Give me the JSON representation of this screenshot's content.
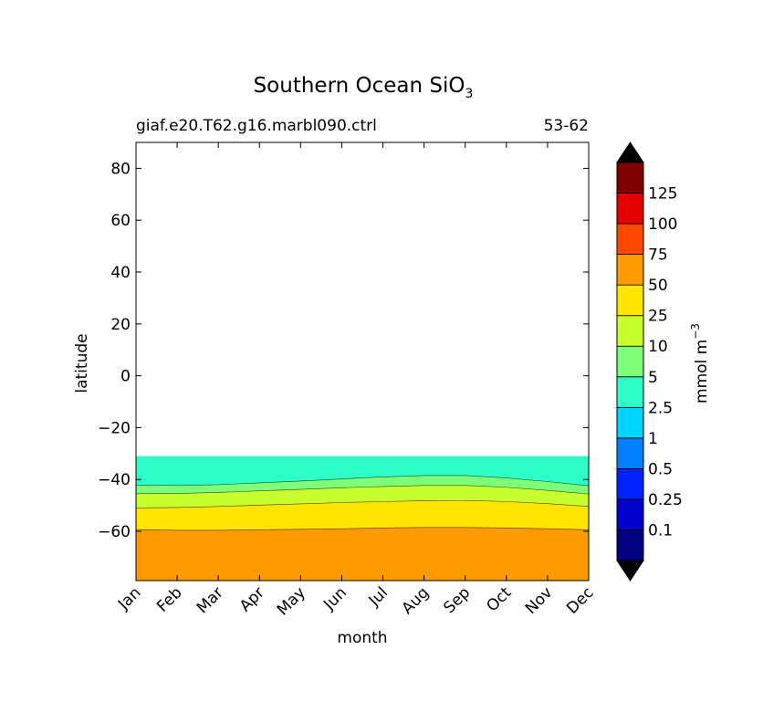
{
  "chart_data": {
    "type": "heatmap",
    "plot_style": "filled-contour",
    "title": "Southern Ocean SiO",
    "title_subscript": "3",
    "subtitle_left": "giaf.e20.T62.g16.marbl090.ctrl",
    "subtitle_right": "53-62",
    "xlabel": "month",
    "ylabel": "latitude",
    "x_ticks": [
      "Jan",
      "Feb",
      "Mar",
      "Apr",
      "May",
      "Jun",
      "Jul",
      "Aug",
      "Sep",
      "Oct",
      "Nov",
      "Dec"
    ],
    "y_ticks": [
      80,
      60,
      40,
      20,
      0,
      -20,
      -40,
      -60
    ],
    "y_tick_labels": [
      "80",
      "60",
      "40",
      "20",
      "0",
      "−20",
      "−40",
      "−60"
    ],
    "ylim": [
      -79,
      90
    ],
    "data_top_latitude": -31,
    "contour_boundaries": [
      {
        "level": 50,
        "latitudes": [
          -59.3,
          -59.6,
          -59.6,
          -59.4,
          -59.2,
          -59.0,
          -58.7,
          -58.5,
          -58.5,
          -58.7,
          -59.0,
          -59.4
        ]
      },
      {
        "level": 25,
        "latitudes": [
          -51.0,
          -50.8,
          -50.4,
          -49.9,
          -49.4,
          -48.9,
          -48.5,
          -48.2,
          -48.1,
          -48.5,
          -49.3,
          -50.4
        ]
      },
      {
        "level": 10,
        "latitudes": [
          -45.5,
          -45.4,
          -45.0,
          -44.4,
          -43.8,
          -43.2,
          -42.7,
          -42.3,
          -42.3,
          -43.0,
          -44.2,
          -45.6
        ]
      },
      {
        "level": 5,
        "latitudes": [
          -42.2,
          -42.3,
          -42.0,
          -41.3,
          -40.6,
          -39.8,
          -39.0,
          -38.5,
          -38.5,
          -39.4,
          -40.8,
          -42.4
        ]
      }
    ],
    "colorbar": {
      "label": "mmol m",
      "label_superscript": "−3",
      "tick_labels": [
        "0.1",
        "0.25",
        "0.5",
        "1",
        "2.5",
        "5",
        "10",
        "25",
        "50",
        "75",
        "100",
        "125"
      ],
      "colors": [
        "#000080",
        "#0000cd",
        "#0022ff",
        "#0080ff",
        "#00d4ff",
        "#2effc9",
        "#7dff7a",
        "#c8ff2e",
        "#ffe500",
        "#ff9a00",
        "#ff4800",
        "#e30000",
        "#800000"
      ],
      "extend_low_color": "#000000",
      "extend_high_color": "#000000"
    }
  }
}
